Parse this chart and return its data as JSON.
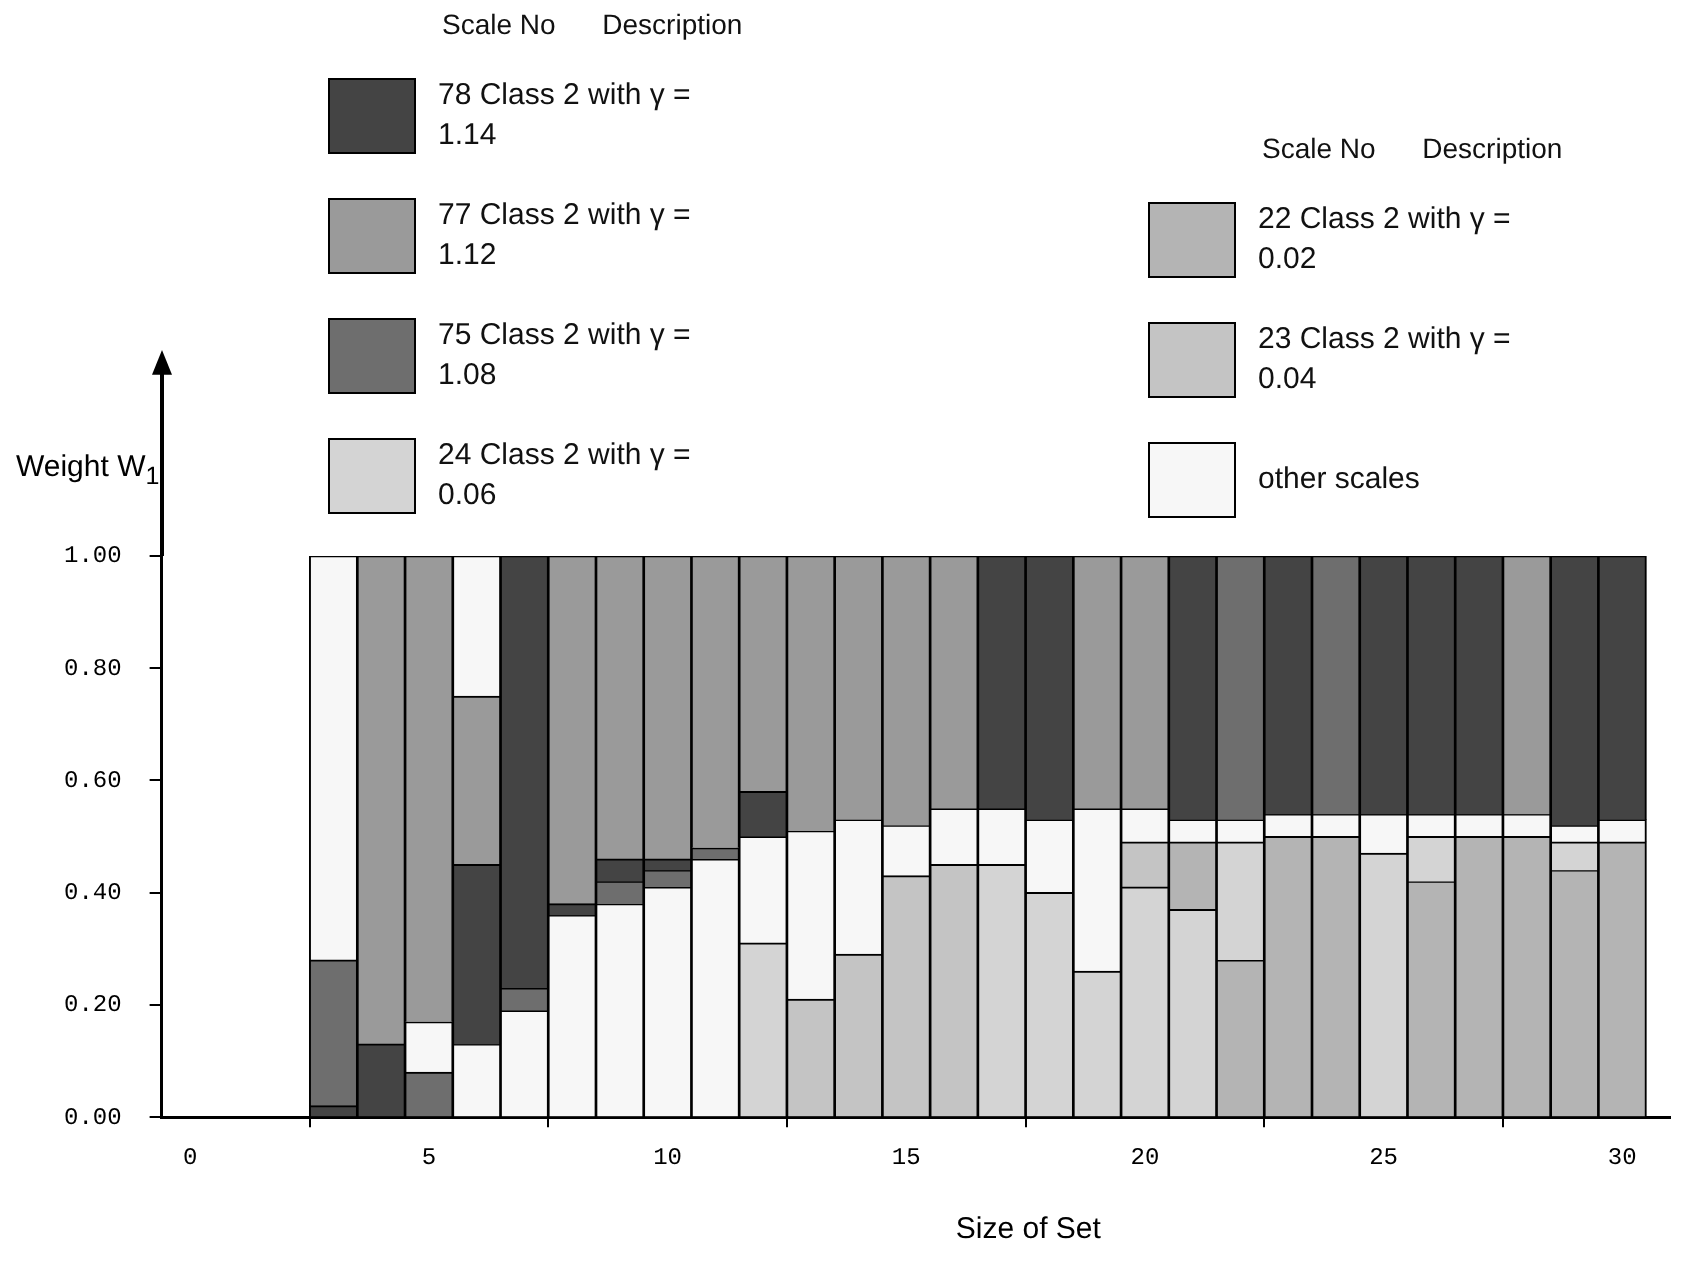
{
  "chart_data": {
    "type": "bar",
    "xlabel": "Size of Set",
    "ylabel": "Weight W$_{1}$",
    "legend_title": "Scale No      Description",
    "legend": "top",
    "x": [
      3,
      4,
      5,
      6,
      7,
      8,
      9,
      10,
      11,
      12,
      13,
      14,
      15,
      16,
      17,
      18,
      19,
      20,
      21,
      22,
      23,
      24,
      25,
      26,
      27,
      28,
      29,
      30
    ],
    "xlim": [
      -0.6,
      31
    ],
    "xticks": [
      0,
      5,
      10,
      15,
      20,
      25,
      30
    ],
    "ylim": [
      0,
      1
    ],
    "yticks": [
      {
        "value": 0,
        "label": "0.00"
      },
      {
        "value": 0.2,
        "label": "0.20"
      },
      {
        "value": 0.4,
        "label": "0.40"
      },
      {
        "value": 0.6,
        "label": "0.60"
      },
      {
        "value": 0.8,
        "label": "0.80"
      },
      {
        "value": 1,
        "label": "1.00"
      }
    ],
    "grid": false,
    "series": [
      {
        "name": "78 Class 2 with γ = 1.14",
        "color": "#444444",
        "values": [
          0.02,
          0.13,
          null,
          0.32,
          0.77,
          0.02,
          0.04,
          0.02,
          null,
          0.08,
          null,
          null,
          null,
          null,
          0.45,
          0.47,
          null,
          null,
          0.47,
          null,
          0.46,
          null,
          0.46,
          0.46,
          0.46,
          null,
          0.48,
          0.47
        ],
        "base": [
          0,
          0,
          null,
          0.13,
          0.23,
          0.36,
          0.42,
          0.44,
          null,
          0.5,
          null,
          null,
          null,
          null,
          0.55,
          0.53,
          null,
          null,
          0.53,
          null,
          0.54,
          null,
          0.54,
          0.54,
          0.54,
          null,
          0.52,
          0.53
        ]
      },
      {
        "name": "77 Class 2 with γ = 1.12",
        "color": "#9a9a9a",
        "values": [
          null,
          0.87,
          0.83,
          0.3,
          null,
          0.62,
          0.54,
          0.54,
          0.52,
          0.42,
          0.49,
          0.47,
          0.48,
          0.45,
          null,
          null,
          0.45,
          0.45,
          null,
          null,
          null,
          null,
          null,
          null,
          null,
          0.46,
          null,
          null
        ],
        "base": [
          null,
          0.13,
          0.17,
          0.45,
          null,
          0.38,
          0.46,
          0.46,
          0.48,
          0.58,
          0.51,
          0.53,
          0.52,
          0.55,
          null,
          null,
          0.55,
          0.55,
          null,
          null,
          null,
          null,
          null,
          null,
          null,
          0.54,
          null,
          null
        ]
      },
      {
        "name": "75 Class 2 with γ = 1.08",
        "color": "#6e6e6e",
        "values": [
          0.26,
          null,
          0.08,
          null,
          0.04,
          null,
          0.04,
          0.03,
          0.02,
          null,
          null,
          null,
          null,
          null,
          null,
          null,
          null,
          null,
          null,
          0.47,
          null,
          0.46,
          null,
          null,
          null,
          null,
          null,
          null
        ],
        "base": [
          0.02,
          null,
          0,
          null,
          0.19,
          null,
          0.38,
          0.41,
          0.46,
          null,
          null,
          null,
          null,
          null,
          null,
          null,
          null,
          null,
          null,
          0.53,
          null,
          0.54,
          null,
          null,
          null,
          null,
          null,
          null
        ]
      },
      {
        "name": "24 Class 2 with γ = 0.06",
        "color": "#d4d4d4",
        "values": [
          null,
          null,
          null,
          null,
          null,
          null,
          null,
          null,
          null,
          0.31,
          null,
          null,
          null,
          null,
          0.45,
          0.4,
          0.26,
          0.41,
          0.37,
          0.21,
          null,
          null,
          0.47,
          0.08,
          null,
          null,
          0.05,
          null
        ],
        "base": [
          null,
          null,
          null,
          null,
          null,
          null,
          null,
          null,
          null,
          0,
          null,
          null,
          null,
          null,
          0,
          0,
          0,
          0,
          0,
          0.28,
          null,
          null,
          0,
          0.42,
          null,
          null,
          0.44,
          null
        ]
      },
      {
        "name": "22 Class 2 with γ = 0.02",
        "color": "#b4b4b4",
        "values": [
          null,
          null,
          null,
          null,
          null,
          null,
          null,
          null,
          null,
          null,
          null,
          null,
          null,
          null,
          null,
          null,
          null,
          null,
          0.12,
          0.28,
          0.5,
          0.5,
          null,
          0.42,
          0.5,
          0.5,
          0.44,
          0.49
        ],
        "base": [
          null,
          null,
          null,
          null,
          null,
          null,
          null,
          null,
          null,
          null,
          null,
          null,
          null,
          null,
          null,
          null,
          null,
          null,
          0.37,
          0,
          0,
          0,
          null,
          0,
          0,
          0,
          0,
          0
        ]
      },
      {
        "name": "23 Class 2 with γ = 0.04",
        "color": "#c4c4c4",
        "values": [
          null,
          null,
          null,
          null,
          null,
          null,
          null,
          null,
          null,
          null,
          0.21,
          0.29,
          0.43,
          0.45,
          null,
          null,
          null,
          0.08,
          null,
          null,
          null,
          null,
          null,
          null,
          null,
          null,
          null,
          null
        ],
        "base": [
          null,
          null,
          null,
          null,
          null,
          null,
          null,
          null,
          null,
          null,
          0,
          0,
          0,
          0,
          null,
          null,
          null,
          0.41,
          null,
          null,
          null,
          null,
          null,
          null,
          null,
          null,
          null,
          null
        ]
      },
      {
        "name": "other scales",
        "color": "#f7f7f7",
        "values": [
          0.72,
          null,
          0.09,
          0.13,
          0.19,
          0.36,
          0.38,
          0.41,
          0.46,
          0.19,
          0.3,
          0.24,
          0.09,
          0.1,
          0.1,
          0.13,
          0.29,
          0.06,
          0.04,
          0.04,
          0.04,
          0.04,
          0.07,
          0.04,
          0.04,
          0.04,
          0.03,
          0.04
        ],
        "base": [
          0.28,
          null,
          0.08,
          0,
          0,
          0,
          0,
          0,
          0,
          0.31,
          0.21,
          0.29,
          0.43,
          0.45,
          0.45,
          0.4,
          0.26,
          0.49,
          0.49,
          0.49,
          0.5,
          0.5,
          0.47,
          0.5,
          0.5,
          0.5,
          0.49,
          0.49
        ]
      },
      {
        "color": "#f7f7f7",
        "values": [
          null,
          null,
          null,
          0.25,
          null,
          null,
          null,
          null,
          null,
          null,
          null,
          null,
          null,
          null,
          null,
          null,
          null,
          null,
          null,
          null,
          null,
          null,
          null,
          null,
          null,
          null,
          null,
          null
        ],
        "base": [
          null,
          null,
          null,
          0.75,
          null,
          null,
          null,
          null,
          null,
          null,
          null,
          null,
          null,
          null,
          null,
          null,
          null,
          null,
          null,
          null,
          null,
          null,
          null,
          null,
          null,
          null,
          null,
          null
        ]
      }
    ]
  }
}
